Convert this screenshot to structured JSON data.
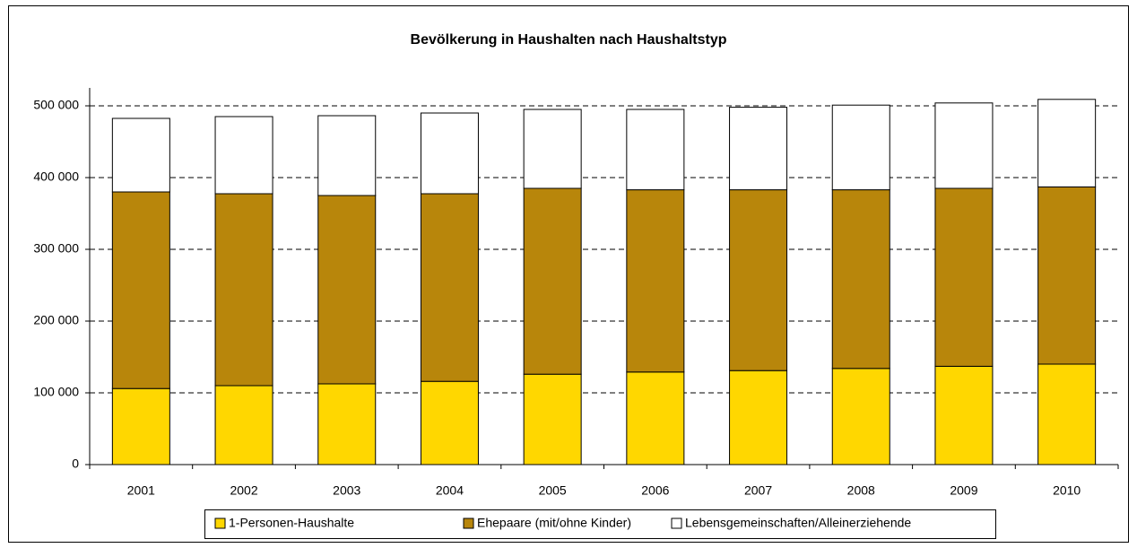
{
  "chart_data": {
    "type": "stacked_bar",
    "title": "Bevölkerung in Haushalten nach Haushaltstyp",
    "categories": [
      "2001",
      "2002",
      "2003",
      "2004",
      "2005",
      "2006",
      "2007",
      "2008",
      "2009",
      "2010"
    ],
    "series": [
      {
        "name": "1-Personen-Haushalte",
        "color": "#FFD700",
        "values": [
          106000,
          110000,
          112500,
          116000,
          126000,
          129000,
          131000,
          134000,
          137000,
          140000
        ]
      },
      {
        "name": "Ehepaare (mit/ohne Kinder)",
        "color": "#B8860B",
        "values": [
          274000,
          267500,
          262500,
          261500,
          259000,
          254000,
          252000,
          249000,
          248000,
          247000
        ]
      },
      {
        "name": "Lebensgemeinschaften/Alleinerziehende",
        "color": "#FFFFFF",
        "values": [
          102500,
          107500,
          111250,
          112500,
          110000,
          112000,
          115000,
          118000,
          119000,
          122000
        ]
      }
    ],
    "ylim": [
      0,
      525000
    ],
    "yticks": [
      0,
      {
        "value": 100000,
        "label": "100 000"
      },
      {
        "value": 200000,
        "label": "200 000"
      },
      {
        "value": 300000,
        "label": "300 000"
      },
      {
        "value": 400000,
        "label": "400 000"
      },
      {
        "value": 500000,
        "label": "500 000"
      }
    ],
    "grid": true,
    "legend": "bottom"
  }
}
